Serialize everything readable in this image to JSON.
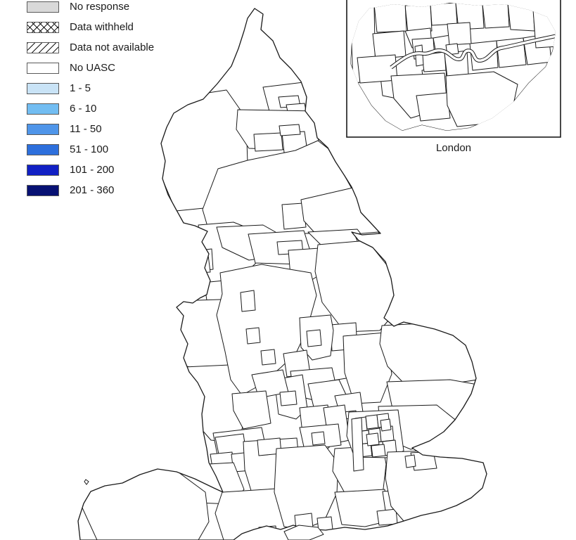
{
  "legend": {
    "items": [
      {
        "id": "no-response",
        "label": "No response",
        "swatch": "gray"
      },
      {
        "id": "data-withheld",
        "label": "Data withheld",
        "swatch": "crosshatch"
      },
      {
        "id": "data-not-available",
        "label": "Data not available",
        "swatch": "diagonal"
      },
      {
        "id": "no-uasc",
        "label": "No UASC",
        "swatch": "white"
      },
      {
        "id": "band-1-5",
        "label": "1 - 5",
        "swatch": "b1"
      },
      {
        "id": "band-6-10",
        "label": "6 - 10",
        "swatch": "b2"
      },
      {
        "id": "band-11-50",
        "label": "11 - 50",
        "swatch": "b3"
      },
      {
        "id": "band-51-100",
        "label": "51 - 100",
        "swatch": "b4"
      },
      {
        "id": "band-101-200",
        "label": "101 - 200",
        "swatch": "b5"
      },
      {
        "id": "band-201-360",
        "label": "201 - 360",
        "swatch": "b6"
      }
    ]
  },
  "inset": {
    "label": "London"
  },
  "colors": {
    "gray": "#d9d9d9",
    "white": "#ffffff",
    "b1": "#c9e3f6",
    "b2": "#72bdf2",
    "b3": "#4f95e9",
    "b4": "#2d6fdc",
    "b5": "#1120c4",
    "b6": "#071173",
    "outline": "#1a1a1a"
  },
  "map": {
    "regions": [
      {
        "id": "r-northumberland",
        "category": "white"
      },
      {
        "id": "r-cumbria",
        "category": "crosshatch"
      },
      {
        "id": "r-tyne-wear",
        "category": "b1"
      },
      {
        "id": "r-tyne-white",
        "category": "white"
      },
      {
        "id": "r-tyne-cross",
        "category": "crosshatch"
      },
      {
        "id": "r-durham",
        "category": "b1"
      },
      {
        "id": "r-darlington",
        "category": "white"
      },
      {
        "id": "r-redcar",
        "category": "crosshatch"
      },
      {
        "id": "r-stockton",
        "category": "b3"
      },
      {
        "id": "r-north-yorkshire",
        "category": "b1"
      },
      {
        "id": "r-york",
        "category": "b3"
      },
      {
        "id": "r-ny-white",
        "category": "white"
      },
      {
        "id": "r-east-riding",
        "category": "white"
      },
      {
        "id": "r-lancashire",
        "category": "b1"
      },
      {
        "id": "r-blackpool",
        "category": "b3"
      },
      {
        "id": "r-lancs-cross",
        "category": "crosshatch"
      },
      {
        "id": "r-wigan-cross",
        "category": "crosshatch"
      },
      {
        "id": "r-west-yorkshire",
        "category": "b3"
      },
      {
        "id": "r-wakefield",
        "category": "gray"
      },
      {
        "id": "r-south-yorkshire",
        "category": "b4"
      },
      {
        "id": "r-pennine-cross",
        "category": "crosshatch"
      },
      {
        "id": "r-stockport",
        "category": "b3"
      },
      {
        "id": "r-cross-white1",
        "category": "white"
      },
      {
        "id": "r-cross-white2",
        "category": "white"
      },
      {
        "id": "r-merseyside",
        "category": "b3"
      },
      {
        "id": "r-cheshire",
        "category": "b1"
      },
      {
        "id": "r-hereford-shrops",
        "category": "white"
      },
      {
        "id": "r-n-lincs",
        "category": "b3"
      },
      {
        "id": "r-ne-lincs",
        "category": "b3"
      },
      {
        "id": "r-lincolnshire",
        "category": "b4"
      },
      {
        "id": "r-lincs-south",
        "category": "b2"
      },
      {
        "id": "r-nottinghamshire",
        "category": "b3"
      },
      {
        "id": "r-nottingham",
        "category": "b1"
      },
      {
        "id": "r-derby",
        "category": "b4"
      },
      {
        "id": "r-leicestershire",
        "category": "b4"
      },
      {
        "id": "r-mk-diag",
        "category": "diagonal"
      },
      {
        "id": "r-northamptonshire",
        "category": "b4"
      },
      {
        "id": "r-cambridgeshire",
        "category": "b3"
      },
      {
        "id": "r-norfolk",
        "category": "b2"
      },
      {
        "id": "r-suffolk",
        "category": "b3"
      },
      {
        "id": "r-essex",
        "category": "b4"
      },
      {
        "id": "r-bedfordshire",
        "category": "b3"
      },
      {
        "id": "r-luton",
        "category": "gray"
      },
      {
        "id": "r-hertfordshire",
        "category": "b4"
      },
      {
        "id": "r-warwickshire",
        "category": "b4"
      },
      {
        "id": "r-west-midlands",
        "category": "b4"
      },
      {
        "id": "r-coventry",
        "category": "b3"
      },
      {
        "id": "r-worcestershire",
        "category": "b2"
      },
      {
        "id": "r-gloucestershire",
        "category": "b3"
      },
      {
        "id": "r-bristol-cross",
        "category": "crosshatch"
      },
      {
        "id": "r-bristol-gray",
        "category": "gray"
      },
      {
        "id": "r-bath",
        "category": "b2"
      },
      {
        "id": "r-oxfordshire",
        "category": "b4"
      },
      {
        "id": "r-bucks",
        "category": "b3"
      },
      {
        "id": "r-berkshire",
        "category": "b4"
      },
      {
        "id": "r-berks-white",
        "category": "white"
      },
      {
        "id": "r-wiltshire",
        "category": "b3"
      },
      {
        "id": "r-swindon",
        "category": "b2"
      },
      {
        "id": "r-hampshire",
        "category": "b3"
      },
      {
        "id": "r-southampton",
        "category": "b2"
      },
      {
        "id": "r-portsmouth",
        "category": "b2"
      },
      {
        "id": "r-surrey",
        "category": "b5"
      },
      {
        "id": "r-london-base",
        "category": "b3"
      },
      {
        "id": "r-london-borough",
        "category": "b3"
      },
      {
        "id": "r-london-navy",
        "category": "b6"
      },
      {
        "id": "r-london-gray1",
        "category": "gray"
      },
      {
        "id": "r-london-gray2",
        "category": "gray"
      },
      {
        "id": "r-london-white",
        "category": "white"
      },
      {
        "id": "r-west-sussex",
        "category": "b3"
      },
      {
        "id": "r-east-sussex",
        "category": "b3"
      },
      {
        "id": "r-brighton",
        "category": "b2"
      },
      {
        "id": "r-kent",
        "category": "b6"
      },
      {
        "id": "r-medway-cross",
        "category": "crosshatch"
      },
      {
        "id": "r-medway-white",
        "category": "white"
      },
      {
        "id": "r-dorset",
        "category": "gray"
      },
      {
        "id": "r-poole",
        "category": "b1"
      },
      {
        "id": "r-somerset",
        "category": "b1"
      },
      {
        "id": "r-devon",
        "category": "crosshatch"
      },
      {
        "id": "r-isle-of-wight",
        "category": "diagonal"
      },
      {
        "id": "i-base",
        "category": "b3"
      },
      {
        "id": "i-borough",
        "category": "b3"
      },
      {
        "id": "i-hillingdon",
        "category": "b6"
      },
      {
        "id": "i-harrow",
        "category": "gray"
      },
      {
        "id": "i-haringey",
        "category": "gray"
      },
      {
        "id": "i-center-gray1",
        "category": "gray"
      },
      {
        "id": "i-center-gray2",
        "category": "gray"
      },
      {
        "id": "i-center-white",
        "category": "white"
      },
      {
        "id": "i-city",
        "category": "b1"
      },
      {
        "id": "i-ealing",
        "category": "b4"
      },
      {
        "id": "i-hounslow",
        "category": "b4"
      },
      {
        "id": "i-kingston-cross",
        "category": "crosshatch"
      },
      {
        "id": "i-croydon",
        "category": "b2"
      },
      {
        "id": "i-bromley-bexley",
        "category": "gray"
      },
      {
        "id": "i-havering",
        "category": "gray"
      }
    ]
  }
}
